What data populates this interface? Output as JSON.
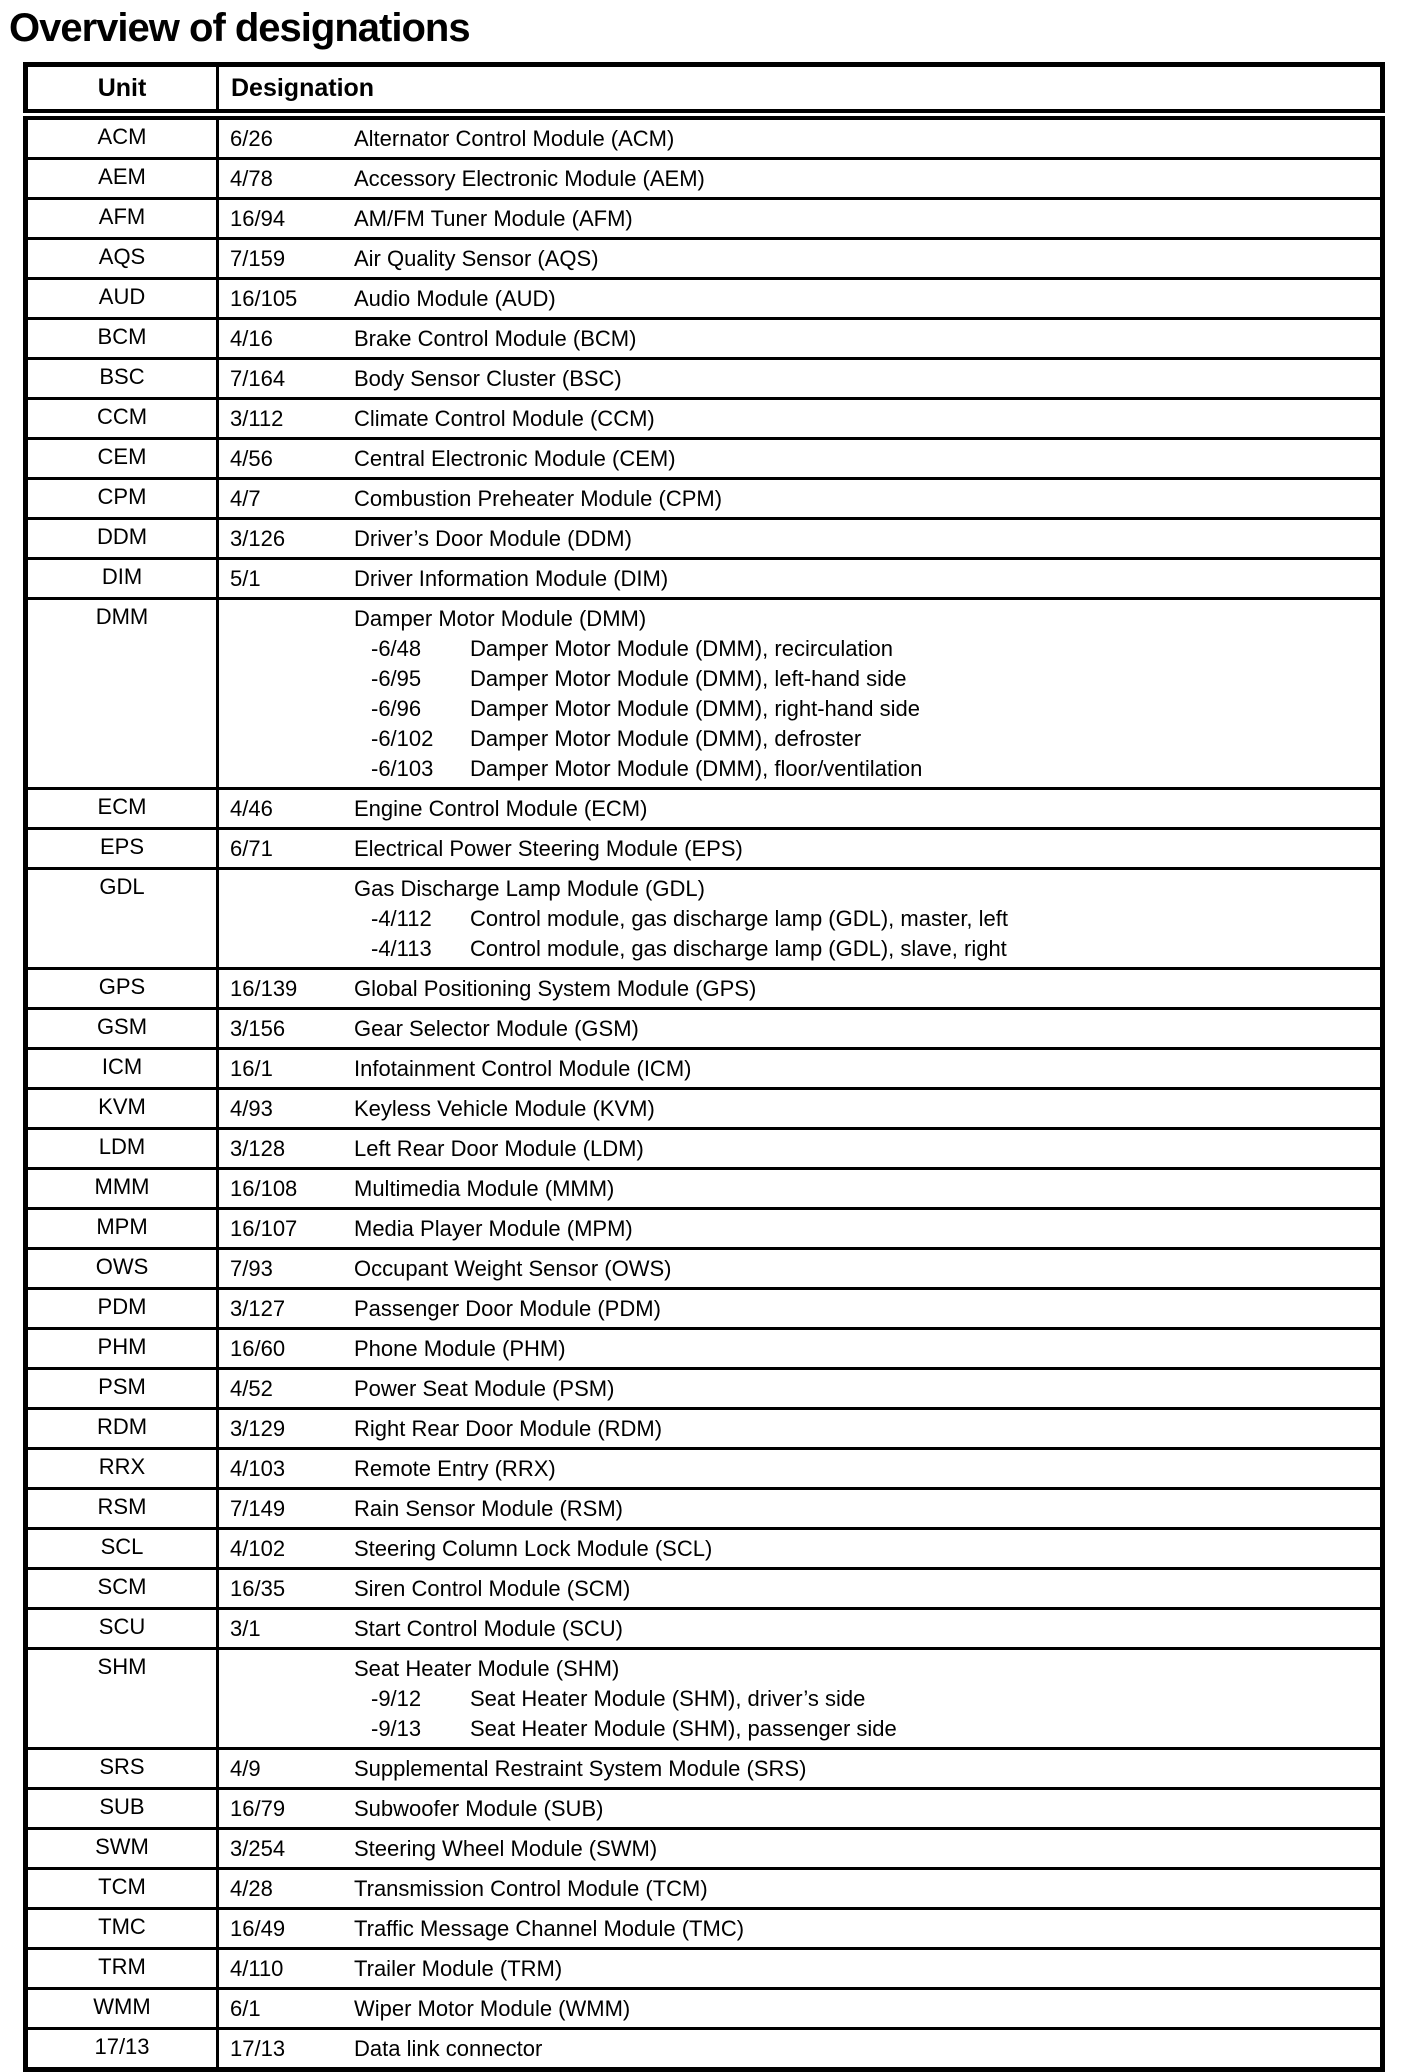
{
  "page": {
    "title": "Overview of designations"
  },
  "colors": {
    "background": "#ffffff",
    "text": "#000000",
    "table_border": "#000000"
  },
  "table": {
    "headers": {
      "unit": "Unit",
      "designation": "Designation"
    },
    "rows": [
      {
        "unit": "ACM",
        "ref": "6/26",
        "desc": "Alternator Control Module (ACM)"
      },
      {
        "unit": "AEM",
        "ref": "4/78",
        "desc": "Accessory Electronic Module (AEM)"
      },
      {
        "unit": "AFM",
        "ref": "16/94",
        "desc": "AM/FM Tuner Module (AFM)"
      },
      {
        "unit": "AQS",
        "ref": "7/159",
        "desc": "Air Quality Sensor (AQS)"
      },
      {
        "unit": "AUD",
        "ref": "16/105",
        "desc": "Audio Module (AUD)"
      },
      {
        "unit": "BCM",
        "ref": "4/16",
        "desc": "Brake Control Module (BCM)"
      },
      {
        "unit": "BSC",
        "ref": "7/164",
        "desc": "Body Sensor Cluster (BSC)"
      },
      {
        "unit": "CCM",
        "ref": "3/112",
        "desc": "Climate Control Module (CCM)"
      },
      {
        "unit": "CEM",
        "ref": "4/56",
        "desc": "Central Electronic Module (CEM)"
      },
      {
        "unit": "CPM",
        "ref": "4/7",
        "desc": "Combustion Preheater Module (CPM)"
      },
      {
        "unit": "DDM",
        "ref": "3/126",
        "desc": "Driver’s Door Module (DDM)"
      },
      {
        "unit": "DIM",
        "ref": "5/1",
        "desc": "Driver Information Module (DIM)"
      },
      {
        "unit": "DMM",
        "ref": "",
        "desc": "Damper Motor Module (DMM)",
        "subs": [
          {
            "ref": "-6/48",
            "desc": "Damper Motor Module (DMM), recirculation"
          },
          {
            "ref": "-6/95",
            "desc": "Damper Motor Module (DMM), left-hand side"
          },
          {
            "ref": "-6/96",
            "desc": "Damper Motor Module (DMM), right-hand side"
          },
          {
            "ref": "-6/102",
            "desc": "Damper Motor Module (DMM), defroster"
          },
          {
            "ref": "-6/103",
            "desc": "Damper Motor Module (DMM), floor/ventilation"
          }
        ]
      },
      {
        "unit": "ECM",
        "ref": "4/46",
        "desc": "Engine Control Module (ECM)"
      },
      {
        "unit": "EPS",
        "ref": "6/71",
        "desc": "Electrical Power Steering Module (EPS)"
      },
      {
        "unit": "GDL",
        "ref": "",
        "desc": "Gas Discharge Lamp Module (GDL)",
        "subs": [
          {
            "ref": "-4/112",
            "desc": "Control module, gas discharge lamp (GDL), master, left"
          },
          {
            "ref": "-4/113",
            "desc": "Control module, gas discharge lamp (GDL), slave, right"
          }
        ]
      },
      {
        "unit": "GPS",
        "ref": "16/139",
        "desc": "Global Positioning System Module (GPS)"
      },
      {
        "unit": "GSM",
        "ref": "3/156",
        "desc": "Gear Selector Module (GSM)"
      },
      {
        "unit": "ICM",
        "ref": "16/1",
        "desc": "Infotainment Control Module (ICM)"
      },
      {
        "unit": "KVM",
        "ref": "4/93",
        "desc": "Keyless Vehicle Module (KVM)"
      },
      {
        "unit": "LDM",
        "ref": "3/128",
        "desc": "Left Rear Door Module (LDM)"
      },
      {
        "unit": "MMM",
        "ref": "16/108",
        "desc": "Multimedia Module (MMM)"
      },
      {
        "unit": "MPM",
        "ref": "16/107",
        "desc": "Media Player Module (MPM)"
      },
      {
        "unit": "OWS",
        "ref": "7/93",
        "desc": "Occupant Weight Sensor (OWS)"
      },
      {
        "unit": "PDM",
        "ref": "3/127",
        "desc": "Passenger Door Module (PDM)"
      },
      {
        "unit": "PHM",
        "ref": "16/60",
        "desc": "Phone Module (PHM)"
      },
      {
        "unit": "PSM",
        "ref": "4/52",
        "desc": "Power Seat Module (PSM)"
      },
      {
        "unit": "RDM",
        "ref": "3/129",
        "desc": "Right Rear Door Module (RDM)"
      },
      {
        "unit": "RRX",
        "ref": "4/103",
        "desc": "Remote Entry (RRX)"
      },
      {
        "unit": "RSM",
        "ref": "7/149",
        "desc": "Rain Sensor Module (RSM)"
      },
      {
        "unit": "SCL",
        "ref": "4/102",
        "desc": "Steering Column Lock Module (SCL)"
      },
      {
        "unit": "SCM",
        "ref": "16/35",
        "desc": "Siren Control Module (SCM)"
      },
      {
        "unit": "SCU",
        "ref": "3/1",
        "desc": "Start Control Module (SCU)"
      },
      {
        "unit": "SHM",
        "ref": "",
        "desc": "Seat Heater Module (SHM)",
        "subs": [
          {
            "ref": "-9/12",
            "desc": "Seat Heater Module (SHM), driver’s side"
          },
          {
            "ref": "-9/13",
            "desc": "Seat Heater Module (SHM), passenger side"
          }
        ]
      },
      {
        "unit": "SRS",
        "ref": "4/9",
        "desc": "Supplemental Restraint System Module (SRS)"
      },
      {
        "unit": "SUB",
        "ref": "16/79",
        "desc": "Subwoofer Module (SUB)"
      },
      {
        "unit": "SWM",
        "ref": "3/254",
        "desc": "Steering Wheel Module (SWM)"
      },
      {
        "unit": "TCM",
        "ref": "4/28",
        "desc": "Transmission Control Module (TCM)"
      },
      {
        "unit": "TMC",
        "ref": "16/49",
        "desc": "Traffic Message Channel Module (TMC)"
      },
      {
        "unit": "TRM",
        "ref": "4/110",
        "desc": "Trailer Module (TRM)"
      },
      {
        "unit": "WMM",
        "ref": "6/1",
        "desc": "Wiper Motor Module (WMM)"
      },
      {
        "unit": "17/13",
        "ref": "17/13",
        "desc": "Data link connector"
      }
    ]
  }
}
